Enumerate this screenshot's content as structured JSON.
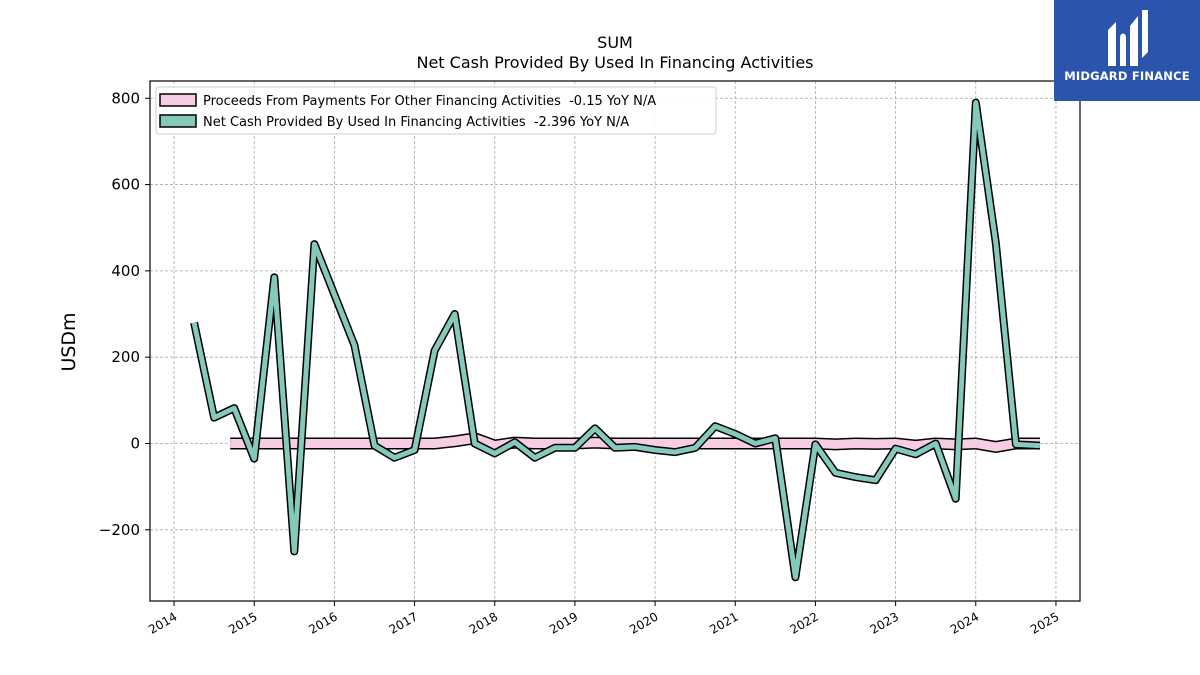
{
  "chart_data": {
    "type": "line",
    "title": "SUM",
    "subtitle": "Net Cash Provided By Used In Financing Activities",
    "xlabel": "",
    "ylabel": "USDm",
    "xlim": [
      2013.7,
      2025.3
    ],
    "ylim": [
      -365,
      840
    ],
    "x_ticks": [
      "2014",
      "2015",
      "2016",
      "2017",
      "2018",
      "2019",
      "2020",
      "2021",
      "2022",
      "2023",
      "2024",
      "2025"
    ],
    "y_ticks": [
      800,
      600,
      400,
      200,
      0,
      -200
    ],
    "y_tick_labels": [
      "800",
      "600",
      "400",
      "200",
      "0",
      "−200"
    ],
    "grid": true,
    "legend_position": "top-left",
    "series": [
      {
        "name": "Proceeds From Payments For Other Financing Activities  -0.15 YoY N/A",
        "color": "#f7cde2",
        "x": [
          2014.7,
          2015.0,
          2015.25,
          2015.5,
          2015.75,
          2016.0,
          2016.25,
          2016.5,
          2016.75,
          2017.0,
          2017.25,
          2017.5,
          2017.75,
          2018.0,
          2018.25,
          2018.5,
          2018.75,
          2019.0,
          2019.25,
          2019.5,
          2019.75,
          2020.0,
          2020.25,
          2020.5,
          2020.75,
          2021.0,
          2021.25,
          2021.5,
          2021.75,
          2022.0,
          2022.25,
          2022.5,
          2022.75,
          2023.0,
          2023.25,
          2023.5,
          2023.75,
          2024.0,
          2024.25,
          2024.5,
          2024.8
        ],
        "values": [
          0,
          0,
          0,
          0,
          0,
          0,
          0,
          0,
          0,
          0,
          0,
          5,
          12,
          -5,
          2,
          0,
          0,
          0,
          2,
          0,
          0,
          0,
          0,
          0,
          0,
          0,
          0,
          0,
          0,
          0,
          -2,
          0,
          -1,
          0,
          -5,
          0,
          -2,
          0,
          -8,
          0,
          0
        ]
      },
      {
        "name": "Net Cash Provided By Used In Financing Activities  -2.396 YoY N/A",
        "color": "#84c9ba",
        "x": [
          2014.25,
          2014.5,
          2014.75,
          2015.0,
          2015.25,
          2015.5,
          2015.75,
          2016.0,
          2016.25,
          2016.5,
          2016.75,
          2017.0,
          2017.25,
          2017.5,
          2017.75,
          2018.0,
          2018.25,
          2018.5,
          2018.75,
          2019.0,
          2019.25,
          2019.5,
          2019.75,
          2020.0,
          2020.25,
          2020.5,
          2020.75,
          2021.0,
          2021.25,
          2021.5,
          2021.75,
          2022.0,
          2022.25,
          2022.5,
          2022.75,
          2023.0,
          2023.25,
          2023.5,
          2023.75,
          2024.0,
          2024.25,
          2024.5,
          2024.8
        ],
        "values": [
          280,
          60,
          82,
          -35,
          385,
          -250,
          462,
          345,
          228,
          -5,
          -33,
          -15,
          215,
          300,
          0,
          -23,
          3,
          -33,
          -10,
          -10,
          35,
          -10,
          -8,
          -15,
          -20,
          -10,
          40,
          22,
          0,
          12,
          -310,
          -2,
          -68,
          -78,
          -85,
          -12,
          -25,
          0,
          -128,
          790,
          465,
          -2,
          -5
        ]
      }
    ]
  },
  "logo": {
    "text": "MIDGARD FINANCE",
    "color": "#2b55ad"
  }
}
